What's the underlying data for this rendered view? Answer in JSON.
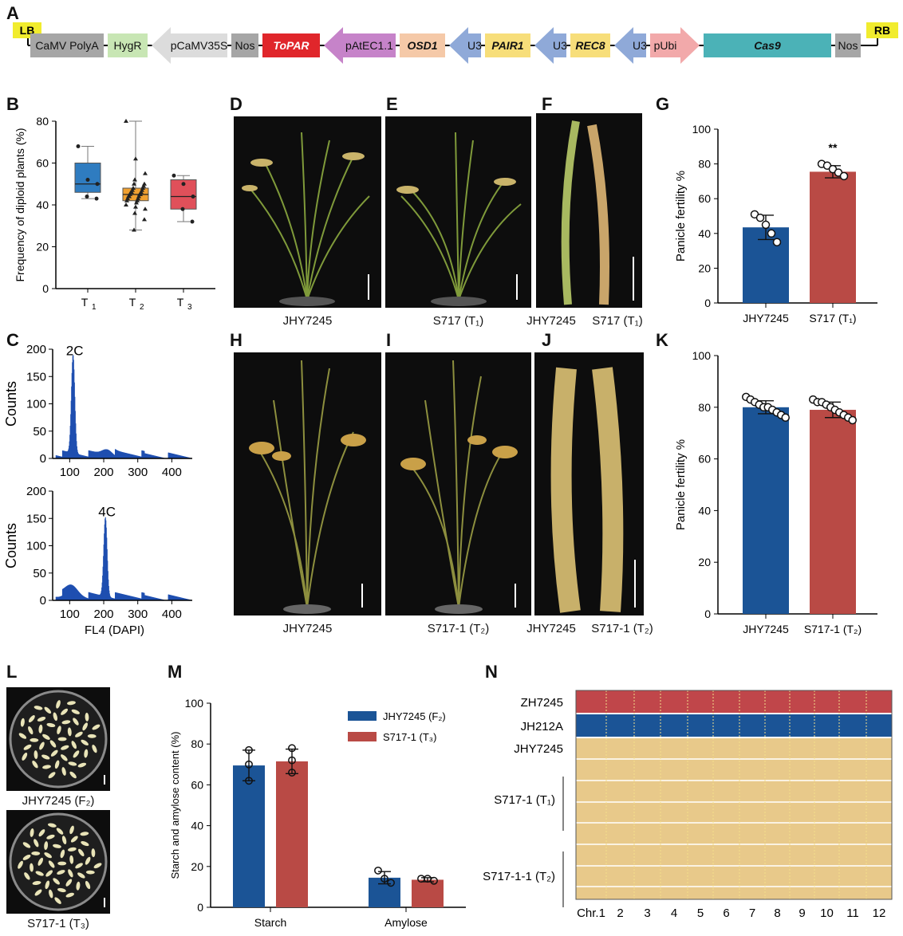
{
  "panels": {
    "A": "A",
    "B": "B",
    "C": "C",
    "D": "D",
    "E": "E",
    "F": "F",
    "G": "G",
    "H": "H",
    "I": "I",
    "J": "J",
    "K": "K",
    "L": "L",
    "M": "M",
    "N": "N"
  },
  "construct": {
    "lb": "LB",
    "rb": "RB",
    "elements": [
      {
        "label": "CaMV PolyA",
        "color": "#a6a6a6",
        "shape": "box",
        "italic": false
      },
      {
        "label": "HygR",
        "color": "#c8e6b4",
        "shape": "box",
        "italic": false
      },
      {
        "label": "pCaMV35S",
        "color": "#dcdcdc",
        "shape": "arrow-left",
        "italic": false
      },
      {
        "label": "Nos",
        "color": "#a6a6a6",
        "shape": "box",
        "italic": false
      },
      {
        "label": "ToPAR",
        "color": "#e0262b",
        "shape": "box",
        "italic": true
      },
      {
        "label": "pAtEC1.1",
        "color": "#c683c9",
        "shape": "arrow-left",
        "italic": false
      },
      {
        "label": "OSD1",
        "color": "#f5c9a8",
        "shape": "box",
        "italic": true
      },
      {
        "label": "U3",
        "color": "#8fa9d8",
        "shape": "arrow-left",
        "italic": false
      },
      {
        "label": "PAIR1",
        "color": "#f7de7a",
        "shape": "box",
        "italic": true
      },
      {
        "label": "U3",
        "color": "#8fa9d8",
        "shape": "arrow-left",
        "italic": false
      },
      {
        "label": "REC8",
        "color": "#f7de7a",
        "shape": "box",
        "italic": true
      },
      {
        "label": "U3",
        "color": "#8fa9d8",
        "shape": "arrow-left",
        "italic": false
      },
      {
        "label": "pUbi",
        "color": "#f2a9aa",
        "shape": "arrow-right",
        "italic": false
      },
      {
        "label": "Cas9",
        "color": "#4bb2b7",
        "shape": "box",
        "italic": true
      },
      {
        "label": "Nos",
        "color": "#a6a6a6",
        "shape": "box",
        "italic": false
      }
    ]
  },
  "chart_data": [
    {
      "id": "B",
      "type": "box",
      "ylabel": "Frequency of diploid plants (%)",
      "ylim": [
        0,
        80
      ],
      "yticks": [
        0,
        20,
        40,
        60,
        80
      ],
      "categories": [
        "T1",
        "T2",
        "T3"
      ],
      "colors": [
        "#2f7cc0",
        "#f0a030",
        "#e0505a"
      ],
      "boxes": [
        {
          "min": 43,
          "q1": 46,
          "median": 50,
          "q3": 60,
          "max": 68,
          "points": [
            68,
            52,
            50,
            44,
            43
          ]
        },
        {
          "min": 28,
          "q1": 42,
          "median": 45,
          "q3": 48,
          "max": 80,
          "points": [
            80,
            62,
            55,
            52,
            50,
            50,
            49,
            48,
            48,
            47,
            47,
            46,
            46,
            46,
            45,
            45,
            45,
            44,
            44,
            44,
            43,
            43,
            42,
            42,
            41,
            40,
            39,
            38,
            36,
            33,
            28
          ]
        },
        {
          "min": 32,
          "q1": 38,
          "median": 44,
          "q3": 52,
          "max": 54,
          "points": [
            54,
            50,
            44,
            38,
            32
          ]
        }
      ]
    },
    {
      "id": "C-top",
      "type": "histogram",
      "label": "2C",
      "peak_x": 110,
      "peak_count": 180,
      "ylabel": "Counts",
      "xlim": [
        50,
        460
      ],
      "ylim": [
        0,
        200
      ],
      "xticks": [
        100,
        200,
        300,
        400
      ],
      "yticks": [
        0,
        50,
        100,
        150,
        200
      ]
    },
    {
      "id": "C-bottom",
      "type": "histogram",
      "label": "4C",
      "peak_x": 205,
      "peak_count": 145,
      "ylabel": "Counts",
      "xlabel": "FL4 (DAPI)",
      "xlim": [
        50,
        460
      ],
      "ylim": [
        0,
        200
      ],
      "xticks": [
        100,
        200,
        300,
        400
      ],
      "yticks": [
        0,
        50,
        100,
        150,
        200
      ]
    },
    {
      "id": "G",
      "type": "bar",
      "ylabel": "Panicle fertility %",
      "ylim": [
        0,
        100
      ],
      "yticks": [
        0,
        20,
        40,
        60,
        80,
        100
      ],
      "categories": [
        "JHY7245",
        "S717 (T₁)"
      ],
      "values": [
        43.5,
        75.5
      ],
      "errors": [
        7,
        3.5
      ],
      "points": [
        [
          51,
          49,
          45,
          40,
          35
        ],
        [
          80,
          79,
          77,
          75,
          73
        ]
      ],
      "colors": [
        "#1b5496",
        "#b94a45"
      ],
      "significance": "**"
    },
    {
      "id": "K",
      "type": "bar",
      "ylabel": "Panicle fertility %",
      "ylim": [
        0,
        100
      ],
      "yticks": [
        0,
        20,
        40,
        60,
        80,
        100
      ],
      "categories": [
        "JHY7245",
        "S717-1 (T₂)"
      ],
      "values": [
        80,
        79
      ],
      "errors": [
        2.5,
        3
      ],
      "points": [
        [
          84,
          83,
          82,
          81,
          80,
          80,
          79,
          78,
          77,
          76
        ],
        [
          83,
          82,
          82,
          81,
          80,
          79,
          78,
          77,
          76,
          75
        ]
      ],
      "colors": [
        "#1b5496",
        "#b94a45"
      ]
    },
    {
      "id": "M",
      "type": "bar",
      "ylabel": "Starch and amylose content (%)",
      "ylim": [
        0,
        100
      ],
      "yticks": [
        0,
        20,
        40,
        60,
        80,
        100
      ],
      "categories": [
        "Starch",
        "Amylose"
      ],
      "series": [
        {
          "name": "JHY7245 (F₂)",
          "color": "#1b5496",
          "values": [
            69.5,
            14.5
          ],
          "errors": [
            7.5,
            3
          ],
          "points": [
            [
              77,
              70,
              62
            ],
            [
              18,
              14,
              12
            ]
          ]
        },
        {
          "name": "S717-1 (T₃)",
          "color": "#b94a45",
          "values": [
            71.5,
            13.5
          ],
          "errors": [
            6,
            1
          ],
          "points": [
            [
              78,
              72,
              66
            ],
            [
              14,
              14,
              13
            ]
          ]
        }
      ]
    },
    {
      "id": "N",
      "type": "heatmap",
      "rows": [
        "ZH7245",
        "JH212A",
        "JHY7245",
        "S717-1 (T₁)",
        "S717-1-1 (T₂)"
      ],
      "row_colors": [
        "#c0464a",
        "#1b5496",
        "#e8c98a"
      ],
      "columns": [
        "Chr.1",
        "2",
        "3",
        "4",
        "5",
        "6",
        "7",
        "8",
        "9",
        "10",
        "11",
        "12"
      ]
    }
  ],
  "captions": {
    "D": "JHY7245",
    "E": "S717 (T₁)",
    "F1": "JHY7245",
    "F2": "S717 (T₁)",
    "H": "JHY7245",
    "I": "S717-1 (T₂)",
    "J1": "JHY7245",
    "J2": "S717-1 (T₂)",
    "L1": "JHY7245 (F₂)",
    "L2": "S717-1 (T₃)"
  }
}
